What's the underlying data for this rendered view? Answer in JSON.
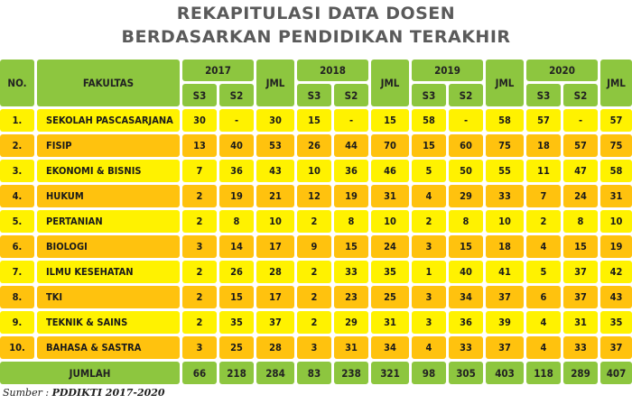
{
  "title_line1": "REKAPITULASI DATA DOSEN",
  "title_line2": "BERDASARKAN PENDIDIKAN TERAKHIR",
  "headers": {
    "no": "NO.",
    "fakultas": "FAKULTAS",
    "jml": "JML",
    "s3": "S3",
    "s2": "S2",
    "years": [
      "2017",
      "2018",
      "2019",
      "2020"
    ]
  },
  "rows": [
    {
      "no": "1.",
      "fakultas": "SEKOLAH PASCASARJANA",
      "values": [
        "30",
        "-",
        "30",
        "15",
        "-",
        "15",
        "58",
        "-",
        "58",
        "57",
        "-",
        "57"
      ]
    },
    {
      "no": "2.",
      "fakultas": "FISIP",
      "values": [
        "13",
        "40",
        "53",
        "26",
        "44",
        "70",
        "15",
        "60",
        "75",
        "18",
        "57",
        "75"
      ]
    },
    {
      "no": "3.",
      "fakultas": "EKONOMI & BISNIS",
      "values": [
        "7",
        "36",
        "43",
        "10",
        "36",
        "46",
        "5",
        "50",
        "55",
        "11",
        "47",
        "58"
      ]
    },
    {
      "no": "4.",
      "fakultas": "HUKUM",
      "values": [
        "2",
        "19",
        "21",
        "12",
        "19",
        "31",
        "4",
        "29",
        "33",
        "7",
        "24",
        "31"
      ]
    },
    {
      "no": "5.",
      "fakultas": "PERTANIAN",
      "values": [
        "2",
        "8",
        "10",
        "2",
        "8",
        "10",
        "2",
        "8",
        "10",
        "2",
        "8",
        "10"
      ]
    },
    {
      "no": "6.",
      "fakultas": "BIOLOGI",
      "values": [
        "3",
        "14",
        "17",
        "9",
        "15",
        "24",
        "3",
        "15",
        "18",
        "4",
        "15",
        "19"
      ]
    },
    {
      "no": "7.",
      "fakultas": "ILMU KESEHATAN",
      "values": [
        "2",
        "26",
        "28",
        "2",
        "33",
        "35",
        "1",
        "40",
        "41",
        "5",
        "37",
        "42"
      ]
    },
    {
      "no": "8.",
      "fakultas": "TKI",
      "values": [
        "2",
        "15",
        "17",
        "2",
        "23",
        "25",
        "3",
        "34",
        "37",
        "6",
        "37",
        "43"
      ]
    },
    {
      "no": "9.",
      "fakultas": "TEKNIK & SAINS",
      "values": [
        "2",
        "35",
        "37",
        "2",
        "29",
        "31",
        "3",
        "36",
        "39",
        "4",
        "31",
        "35"
      ]
    },
    {
      "no": "10.",
      "fakultas": "BAHASA & SASTRA",
      "values": [
        "3",
        "25",
        "28",
        "3",
        "31",
        "34",
        "4",
        "33",
        "37",
        "4",
        "33",
        "37"
      ]
    }
  ],
  "total": {
    "label": "JUMLAH",
    "values": [
      "66",
      "218",
      "284",
      "83",
      "238",
      "321",
      "98",
      "305",
      "403",
      "118",
      "289",
      "407"
    ]
  },
  "source_label": "Sumber :",
  "source_text": "PDDIKTI 2017-2020",
  "colors": {
    "header": "#8dc63f",
    "row_light": "#fff200",
    "row_dark": "#ffc20e",
    "title": "#5a5a5a"
  }
}
